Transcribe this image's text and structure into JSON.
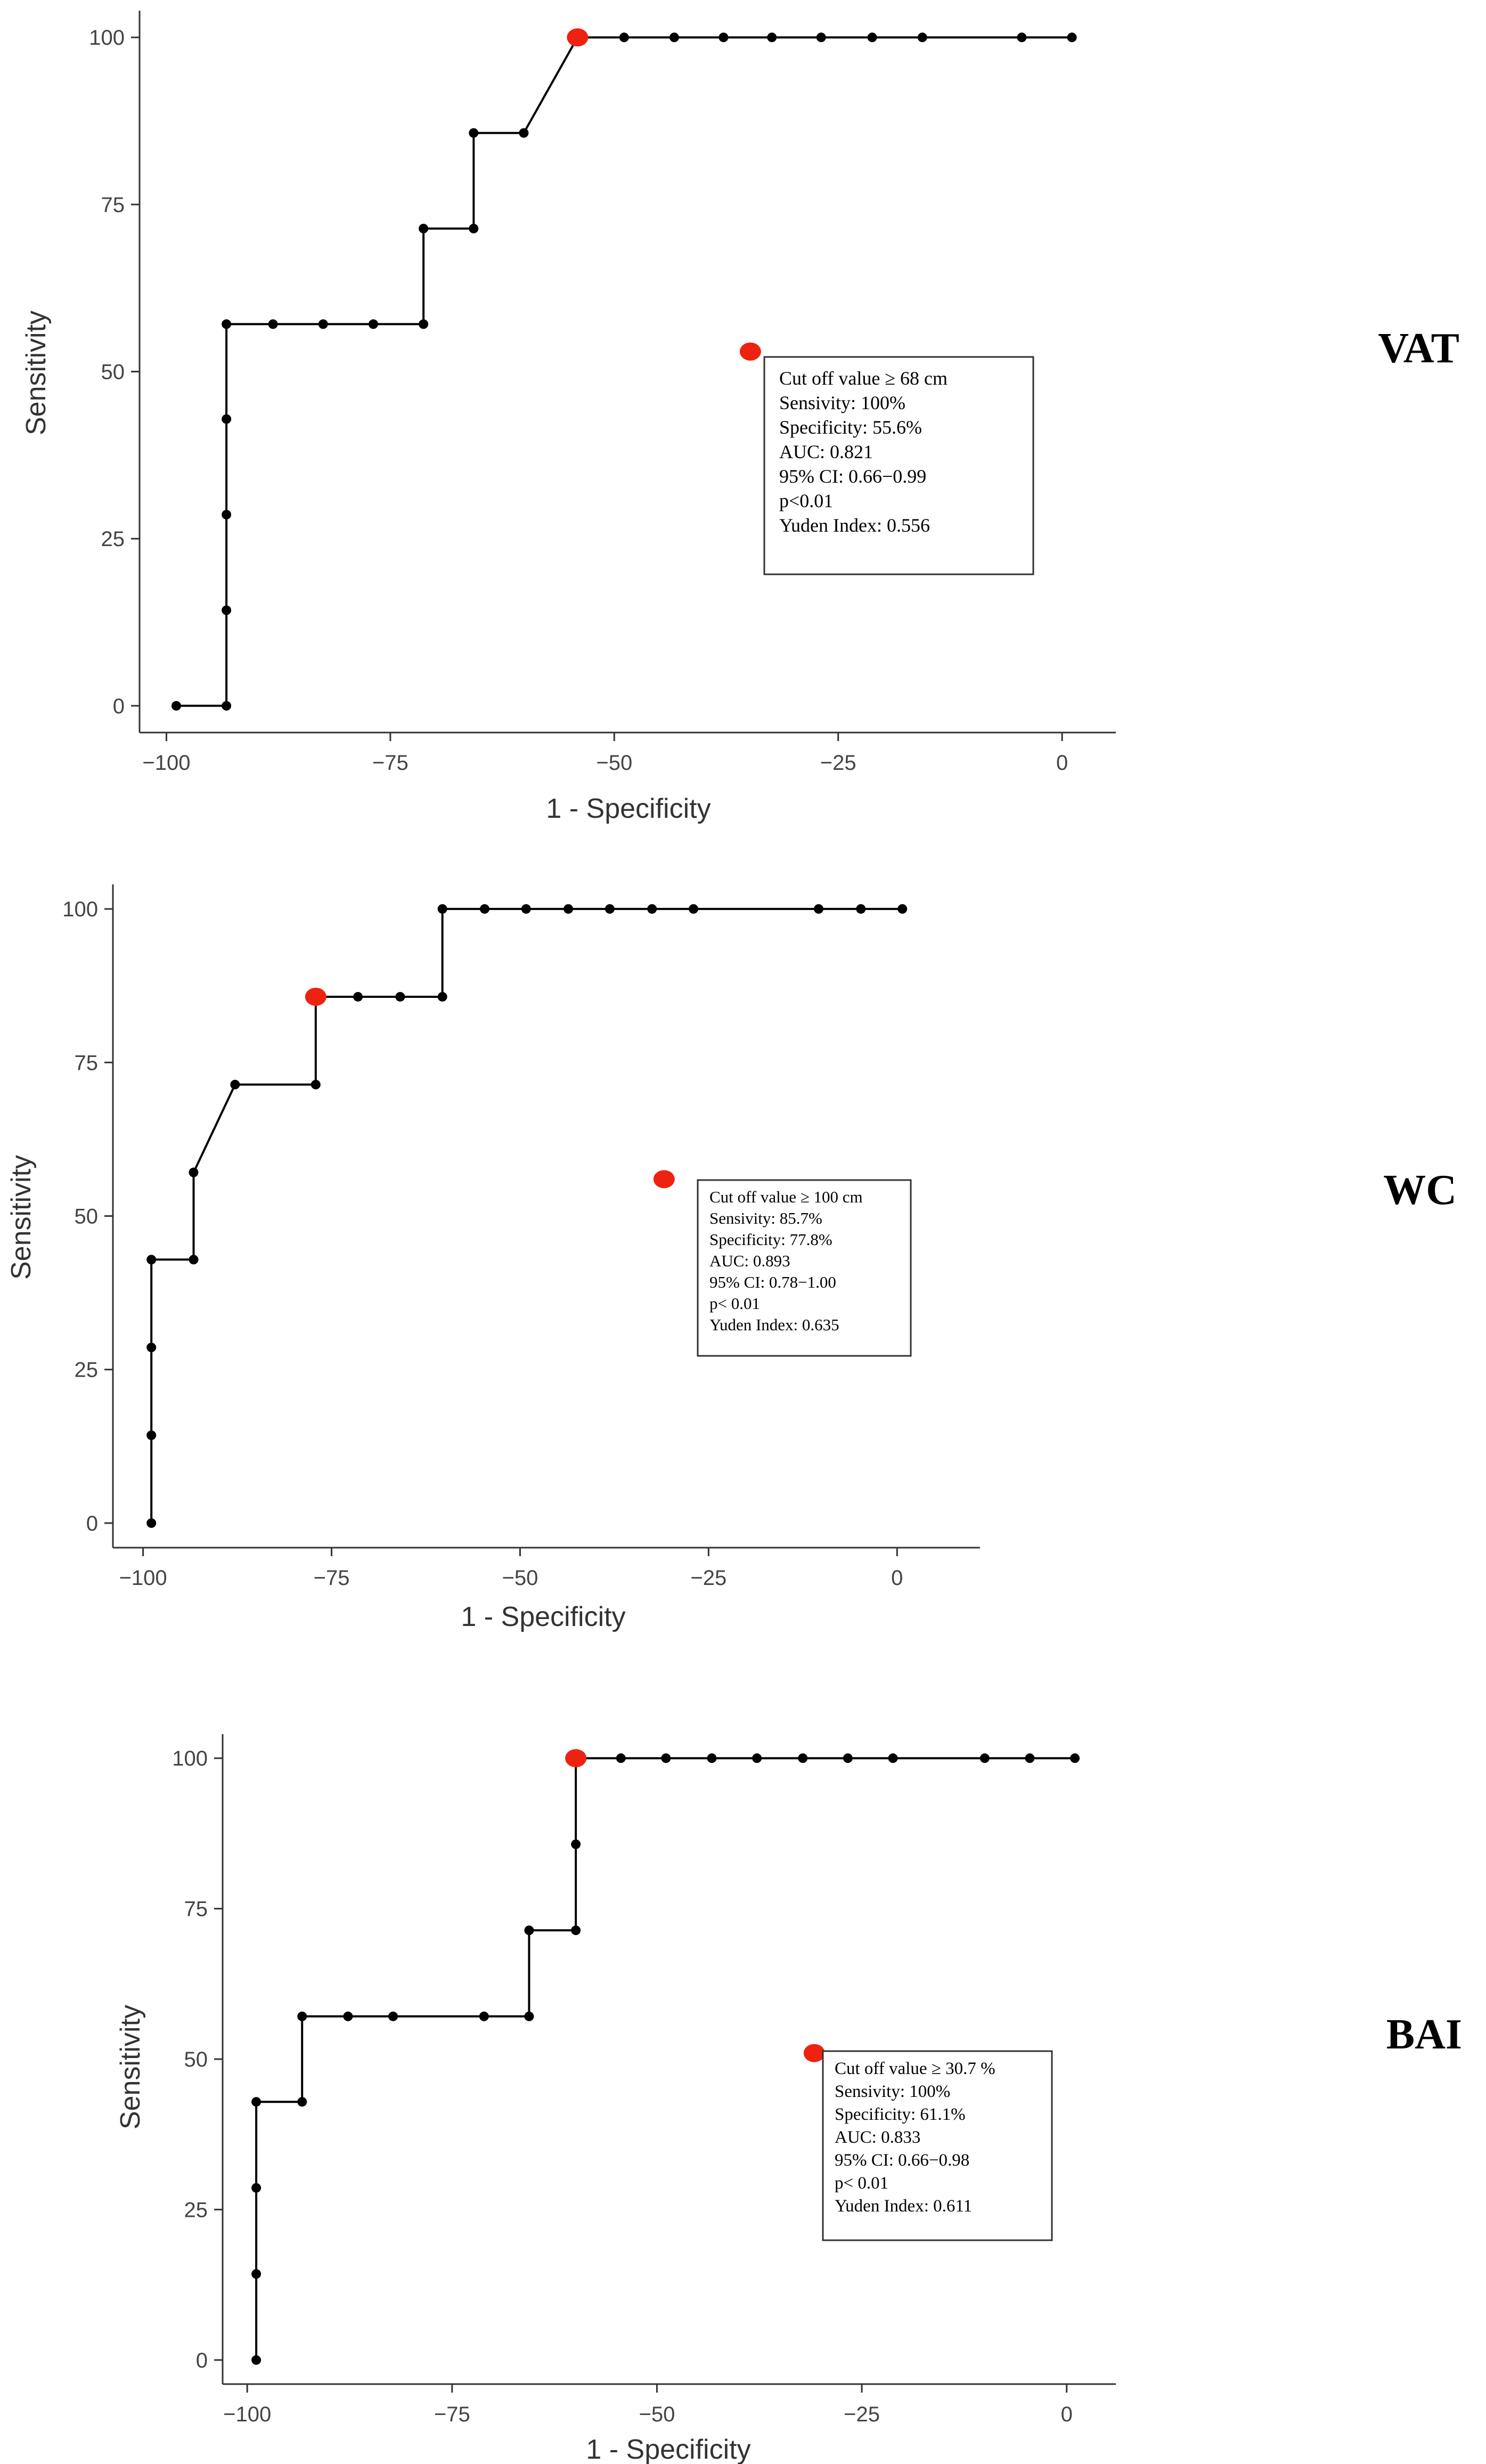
{
  "chart_data": [
    {
      "type": "line",
      "panel_label": "VAT",
      "xlabel": "1 - Specificity",
      "ylabel": "Sensitivity",
      "xlim": [
        -103,
        6
      ],
      "ylim": [
        -4,
        104
      ],
      "x_ticks": [
        -100,
        -75,
        -50,
        -25,
        0
      ],
      "x_tick_labels": [
        "−100",
        "−75",
        "−50",
        "−25",
        "0"
      ],
      "y_ticks": [
        0,
        25,
        50,
        75,
        100
      ],
      "y_tick_labels": [
        "0",
        "25",
        "50",
        "75",
        "100"
      ],
      "grid": false,
      "series": [
        {
          "x": [
            -98.9,
            -93.3,
            -93.3,
            -93.3,
            -93.3,
            -93.3,
            -88.1,
            -82.5,
            -76.9,
            -71.3,
            -71.3,
            -65.7,
            -65.7,
            -60.1,
            -54.1,
            -48.9,
            -43.3,
            -37.8,
            -32.4,
            -26.9,
            -21.2,
            -15.6,
            -4.5,
            1.1
          ],
          "y": [
            0,
            0,
            14.3,
            28.6,
            42.9,
            57.1,
            57.1,
            57.1,
            57.1,
            57.1,
            71.4,
            71.4,
            85.7,
            85.7,
            100,
            100,
            100,
            100,
            100,
            100,
            100,
            100,
            100,
            100
          ]
        }
      ],
      "highlight_point": {
        "x": -54.1,
        "y": 100
      },
      "legend_marker": {
        "x": -34.8,
        "y": 53
      },
      "annotation_lines": [
        "Cut off value ≥ 68 cm",
        "Sensivity: 100%",
        "Specificity: 55.6%",
        "AUC: 0.821",
        "95% CI: 0.66−0.99",
        "p<0.01",
        "Yuden Index: 0.556"
      ]
    },
    {
      "type": "line",
      "panel_label": "WC",
      "xlabel": "1 - Specificity",
      "ylabel": "Sensitivity",
      "xlim": [
        -104,
        11
      ],
      "ylim": [
        -4,
        104
      ],
      "x_ticks": [
        -100,
        -75,
        -50,
        -25,
        0
      ],
      "x_tick_labels": [
        "−100",
        "−75",
        "−50",
        "−25",
        "0"
      ],
      "y_ticks": [
        0,
        25,
        50,
        75,
        100
      ],
      "y_tick_labels": [
        "0",
        "25",
        "50",
        "75",
        "100"
      ],
      "grid": false,
      "series": [
        {
          "x": [
            -98.9,
            -98.9,
            -98.9,
            -98.9,
            -93.3,
            -93.3,
            -87.8,
            -77.1,
            -77.1,
            -71.5,
            -65.9,
            -60.3,
            -60.3,
            -54.7,
            -49.2,
            -43.6,
            -38.1,
            -32.5,
            -27.0,
            -10.4,
            -4.8,
            0.7
          ],
          "y": [
            0,
            14.3,
            28.6,
            42.9,
            42.9,
            57.1,
            71.4,
            71.4,
            85.7,
            85.7,
            85.7,
            85.7,
            100,
            100,
            100,
            100,
            100,
            100,
            100,
            100,
            100,
            100
          ]
        }
      ],
      "highlight_point": {
        "x": -77.1,
        "y": 85.7
      },
      "legend_marker": {
        "x": -30.9,
        "y": 56
      },
      "annotation_lines": [
        "Cut off value ≥ 100 cm",
        "Sensivity: 85.7%",
        "Specificity: 77.8%",
        "AUC: 0.893",
        "95% CI: 0.78−1.00",
        "p< 0.01",
        "Yuden Index: 0.635"
      ]
    },
    {
      "type": "line",
      "panel_label": "BAI",
      "xlabel": "1 - Specificity",
      "ylabel": "Sensitivity",
      "xlim": [
        -103,
        6
      ],
      "ylim": [
        -4,
        104
      ],
      "x_ticks": [
        -100,
        -75,
        -50,
        -25,
        0
      ],
      "x_tick_labels": [
        "−100",
        "−75",
        "−50",
        "−25",
        "0"
      ],
      "y_ticks": [
        0,
        25,
        50,
        75,
        100
      ],
      "y_tick_labels": [
        "0",
        "25",
        "50",
        "75",
        "100"
      ],
      "grid": false,
      "series": [
        {
          "x": [
            -98.9,
            -98.9,
            -98.9,
            -98.9,
            -93.3,
            -93.3,
            -87.7,
            -82.2,
            -71.1,
            -65.6,
            -65.6,
            -59.9,
            -59.9,
            -59.9,
            -54.4,
            -48.9,
            -43.3,
            -37.8,
            -32.2,
            -26.7,
            -21.2,
            -10.0,
            -4.5,
            1.0
          ],
          "y": [
            0,
            14.3,
            28.6,
            42.9,
            42.9,
            57.1,
            57.1,
            57.1,
            57.1,
            57.1,
            71.4,
            71.4,
            85.7,
            100,
            100,
            100,
            100,
            100,
            100,
            100,
            100,
            100,
            100,
            100
          ]
        }
      ],
      "highlight_point": {
        "x": -59.9,
        "y": 100
      },
      "legend_marker": {
        "x": -30.8,
        "y": 51
      },
      "annotation_lines": [
        "Cut off value ≥ 30.7 %",
        "Sensivity: 100%",
        "Specificity: 61.1%",
        "AUC: 0.833",
        "95% CI: 0.66−0.98",
        "p< 0.01",
        "Yuden Index: 0.611"
      ]
    }
  ]
}
